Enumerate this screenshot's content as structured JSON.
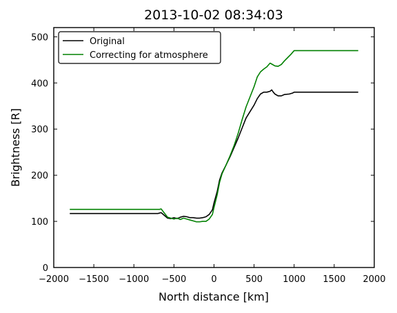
{
  "chart_data": {
    "type": "line",
    "title": "2013-10-02 08:34:03",
    "xlabel": "North distance [km]",
    "ylabel": "Brightness [R]",
    "xlim": [
      -2000,
      2000
    ],
    "ylim": [
      0,
      520
    ],
    "xticks": [
      -2000,
      -1500,
      -1000,
      -500,
      0,
      500,
      1000,
      1500,
      2000
    ],
    "yticks": [
      0,
      100,
      200,
      300,
      400,
      500
    ],
    "xtick_labels": [
      "−2000",
      "−1500",
      "−1000",
      "−500",
      "0",
      "500",
      "1000",
      "1500",
      "2000"
    ],
    "ytick_labels": [
      "0",
      "100",
      "200",
      "300",
      "400",
      "500"
    ],
    "grid": false,
    "legend_position": "top-left",
    "series": [
      {
        "name": "Original",
        "color": "#000000",
        "points": [
          [
            -1800,
            117
          ],
          [
            -700,
            117
          ],
          [
            -660,
            119
          ],
          [
            -620,
            113
          ],
          [
            -580,
            107
          ],
          [
            -540,
            106
          ],
          [
            -500,
            108
          ],
          [
            -460,
            106
          ],
          [
            -420,
            109
          ],
          [
            -380,
            111
          ],
          [
            -340,
            110
          ],
          [
            -300,
            108
          ],
          [
            -260,
            108
          ],
          [
            -220,
            107
          ],
          [
            -180,
            107
          ],
          [
            -140,
            108
          ],
          [
            -100,
            110
          ],
          [
            -60,
            115
          ],
          [
            -20,
            125
          ],
          [
            0,
            140
          ],
          [
            40,
            165
          ],
          [
            70,
            190
          ],
          [
            100,
            205
          ],
          [
            150,
            222
          ],
          [
            200,
            240
          ],
          [
            250,
            260
          ],
          [
            300,
            280
          ],
          [
            350,
            302
          ],
          [
            400,
            324
          ],
          [
            450,
            338
          ],
          [
            500,
            352
          ],
          [
            540,
            366
          ],
          [
            580,
            376
          ],
          [
            620,
            380
          ],
          [
            660,
            380
          ],
          [
            700,
            382
          ],
          [
            720,
            385
          ],
          [
            740,
            380
          ],
          [
            760,
            376
          ],
          [
            800,
            372
          ],
          [
            840,
            372
          ],
          [
            880,
            375
          ],
          [
            940,
            376
          ],
          [
            980,
            378
          ],
          [
            1000,
            380
          ],
          [
            1800,
            380
          ]
        ]
      },
      {
        "name": "Correcting for atmosphere",
        "color": "#008000",
        "points": [
          [
            -1800,
            126
          ],
          [
            -680,
            126
          ],
          [
            -660,
            127
          ],
          [
            -620,
            118
          ],
          [
            -580,
            109
          ],
          [
            -540,
            107
          ],
          [
            -500,
            105
          ],
          [
            -460,
            107
          ],
          [
            -420,
            104
          ],
          [
            -380,
            107
          ],
          [
            -340,
            105
          ],
          [
            -300,
            103
          ],
          [
            -260,
            101
          ],
          [
            -220,
            99
          ],
          [
            -180,
            99
          ],
          [
            -140,
            100
          ],
          [
            -100,
            100
          ],
          [
            -60,
            105
          ],
          [
            -20,
            115
          ],
          [
            0,
            130
          ],
          [
            40,
            158
          ],
          [
            70,
            185
          ],
          [
            100,
            203
          ],
          [
            150,
            222
          ],
          [
            200,
            242
          ],
          [
            250,
            264
          ],
          [
            300,
            290
          ],
          [
            350,
            320
          ],
          [
            400,
            348
          ],
          [
            450,
            370
          ],
          [
            500,
            392
          ],
          [
            540,
            413
          ],
          [
            580,
            424
          ],
          [
            620,
            430
          ],
          [
            660,
            435
          ],
          [
            700,
            443
          ],
          [
            720,
            441
          ],
          [
            760,
            437
          ],
          [
            800,
            436
          ],
          [
            840,
            440
          ],
          [
            880,
            448
          ],
          [
            920,
            455
          ],
          [
            960,
            462
          ],
          [
            1000,
            470
          ],
          [
            1800,
            470
          ]
        ]
      }
    ]
  }
}
